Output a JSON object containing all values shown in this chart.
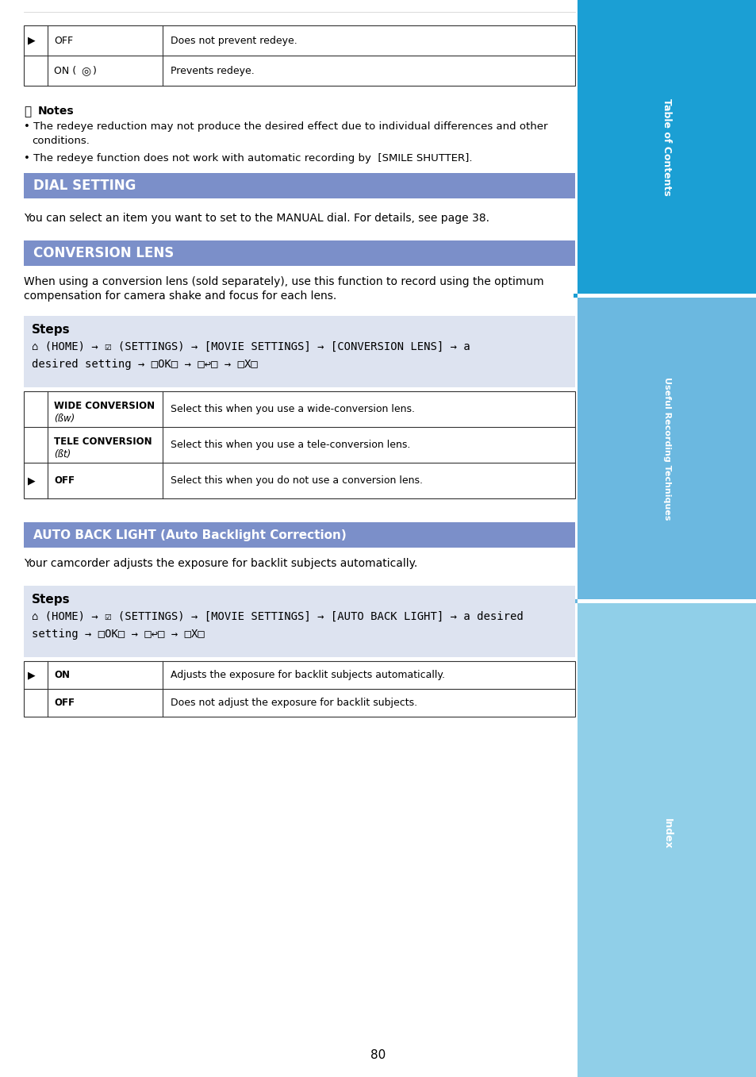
{
  "page_number": "80",
  "bg_color": "#ffffff",
  "sidebar_colors": {
    "table_of_contents": "#1b9fd4",
    "useful_recording": "#6bb8e0",
    "index": "#90cfe8"
  },
  "sidebar_labels": [
    "Table of Contents",
    "Useful Recording Techniques",
    "Index"
  ],
  "section_header_color": "#7b8fc9",
  "steps_box_color": "#dde3f0",
  "section1_title": "DIAL SETTING",
  "section1_text": "You can select an item you want to set to the MANUAL dial. For details, see page 38.",
  "section2_title": "CONVERSION LENS",
  "section2_intro": "When using a conversion lens (sold separately), use this function to record using the optimum\ncompensation for camera shake and focus for each lens.",
  "section2_steps": "(HOME) →  (SETTINGS) → [MOVIE SETTINGS] → [CONVERSION LENS] → a\ndesired setting →  →  → ",
  "section2_table": [
    [
      "WIDE CONVERSION\n(ßw)",
      "Select this when you use a wide-conversion lens."
    ],
    [
      "TELE CONVERSION\n(ßt)",
      "Select this when you use a tele-conversion lens."
    ],
    [
      "►  OFF",
      "Select this when you do not use a conversion lens."
    ]
  ],
  "section3_title": "AUTO BACK LIGHT (Auto Backlight Correction)",
  "section3_intro": "Your camcorder adjusts the exposure for backlit subjects automatically.",
  "section3_steps": "(HOME) →  (SETTINGS) → [MOVIE SETTINGS] → [AUTO BACK LIGHT] → a desired\nsetting →  →  → ",
  "section3_table": [
    [
      "►  ON",
      "Adjusts the exposure for backlit subjects automatically."
    ],
    [
      "OFF",
      "Does not adjust the exposure for backlit subjects."
    ]
  ],
  "top_table": [
    [
      "►  OFF",
      "Does not prevent redeye."
    ],
    [
      "ON (×)",
      "Prevents redeye."
    ]
  ],
  "notes_text": "Notes\n• The redeye reduction may not produce the desired effect due to individual differences and other\n   conditions.\n• The redeye function does not work with automatic recording by  [SMILE SHUTTER]."
}
